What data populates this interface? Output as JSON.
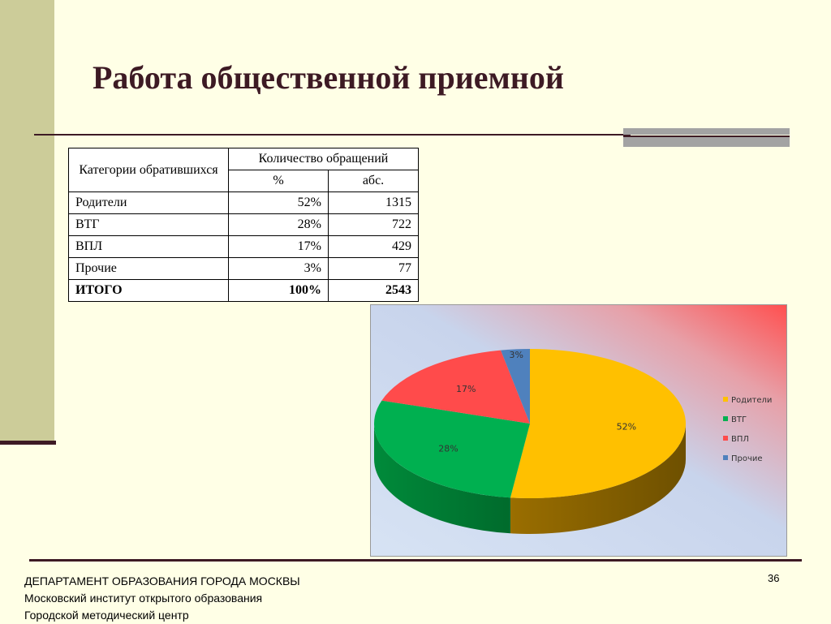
{
  "slide": {
    "title": "Работа общественной приемной",
    "page_number": "36",
    "footer_lines": [
      "ДЕПАРТАМЕНТ ОБРАЗОВАНИЯ ГОРОДА МОСКВЫ",
      "Московский институт открытого образования",
      "Городской методический центр"
    ]
  },
  "table": {
    "col_category": "Категории обратившихся",
    "col_group": "Количество обращений",
    "col_pct": "%",
    "col_abs": "абс.",
    "rows": [
      {
        "category": "Родители",
        "pct": "52%",
        "abs": "1315"
      },
      {
        "category": "ВТГ",
        "pct": "28%",
        "abs": "722"
      },
      {
        "category": "ВПЛ",
        "pct": "17%",
        "abs": "429"
      },
      {
        "category": "Прочие",
        "pct": "3%",
        "abs": "77"
      }
    ],
    "total": {
      "category": "ИТОГО",
      "pct": "100%",
      "abs": "2543"
    }
  },
  "chart_data": {
    "type": "pie",
    "categories": [
      "Родители",
      "ВТГ",
      "ВПЛ",
      "Прочие"
    ],
    "values": [
      52,
      28,
      17,
      3
    ],
    "labels": [
      "52%",
      "28%",
      "17%",
      "3%"
    ],
    "colors": [
      "#ffc000",
      "#00b050",
      "#ff4b4b",
      "#4f81bd"
    ],
    "style": "3d",
    "legend": "right"
  }
}
